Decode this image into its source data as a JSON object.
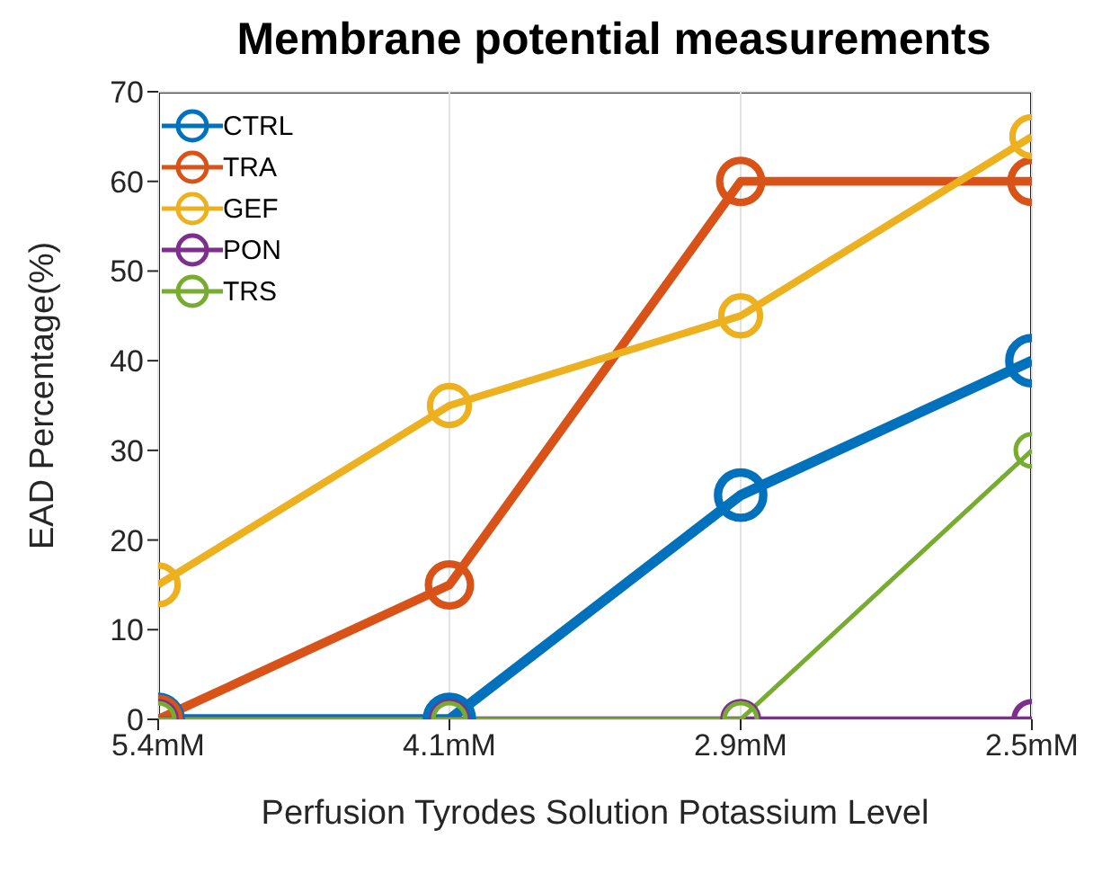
{
  "chart_data": {
    "type": "line",
    "title": "Membrane potential measurements",
    "xlabel": "Perfusion Tyrodes Solution Potassium Level",
    "ylabel": "EAD Percentage(%)",
    "categories": [
      "5.4mM",
      "4.1mM",
      "2.9mM",
      "2.5mM"
    ],
    "series": [
      {
        "name": "CTRL",
        "color": "#0072bd",
        "values": [
          0,
          0,
          25,
          40
        ]
      },
      {
        "name": "TRA",
        "color": "#d95319",
        "values": [
          0,
          15,
          60,
          60
        ]
      },
      {
        "name": "GEF",
        "color": "#edb120",
        "values": [
          15,
          35,
          45,
          65
        ]
      },
      {
        "name": "PON",
        "color": "#7e2f8e",
        "values": [
          0,
          0,
          0,
          0
        ]
      },
      {
        "name": "TRS",
        "color": "#77ac30",
        "values": [
          0,
          0,
          0,
          30
        ]
      }
    ],
    "ylim": [
      0,
      70
    ],
    "yticks": [
      0,
      10,
      20,
      30,
      40,
      50,
      60,
      70
    ],
    "grid": true,
    "legend": "top left",
    "marker": "circle",
    "line_style": "solid"
  }
}
